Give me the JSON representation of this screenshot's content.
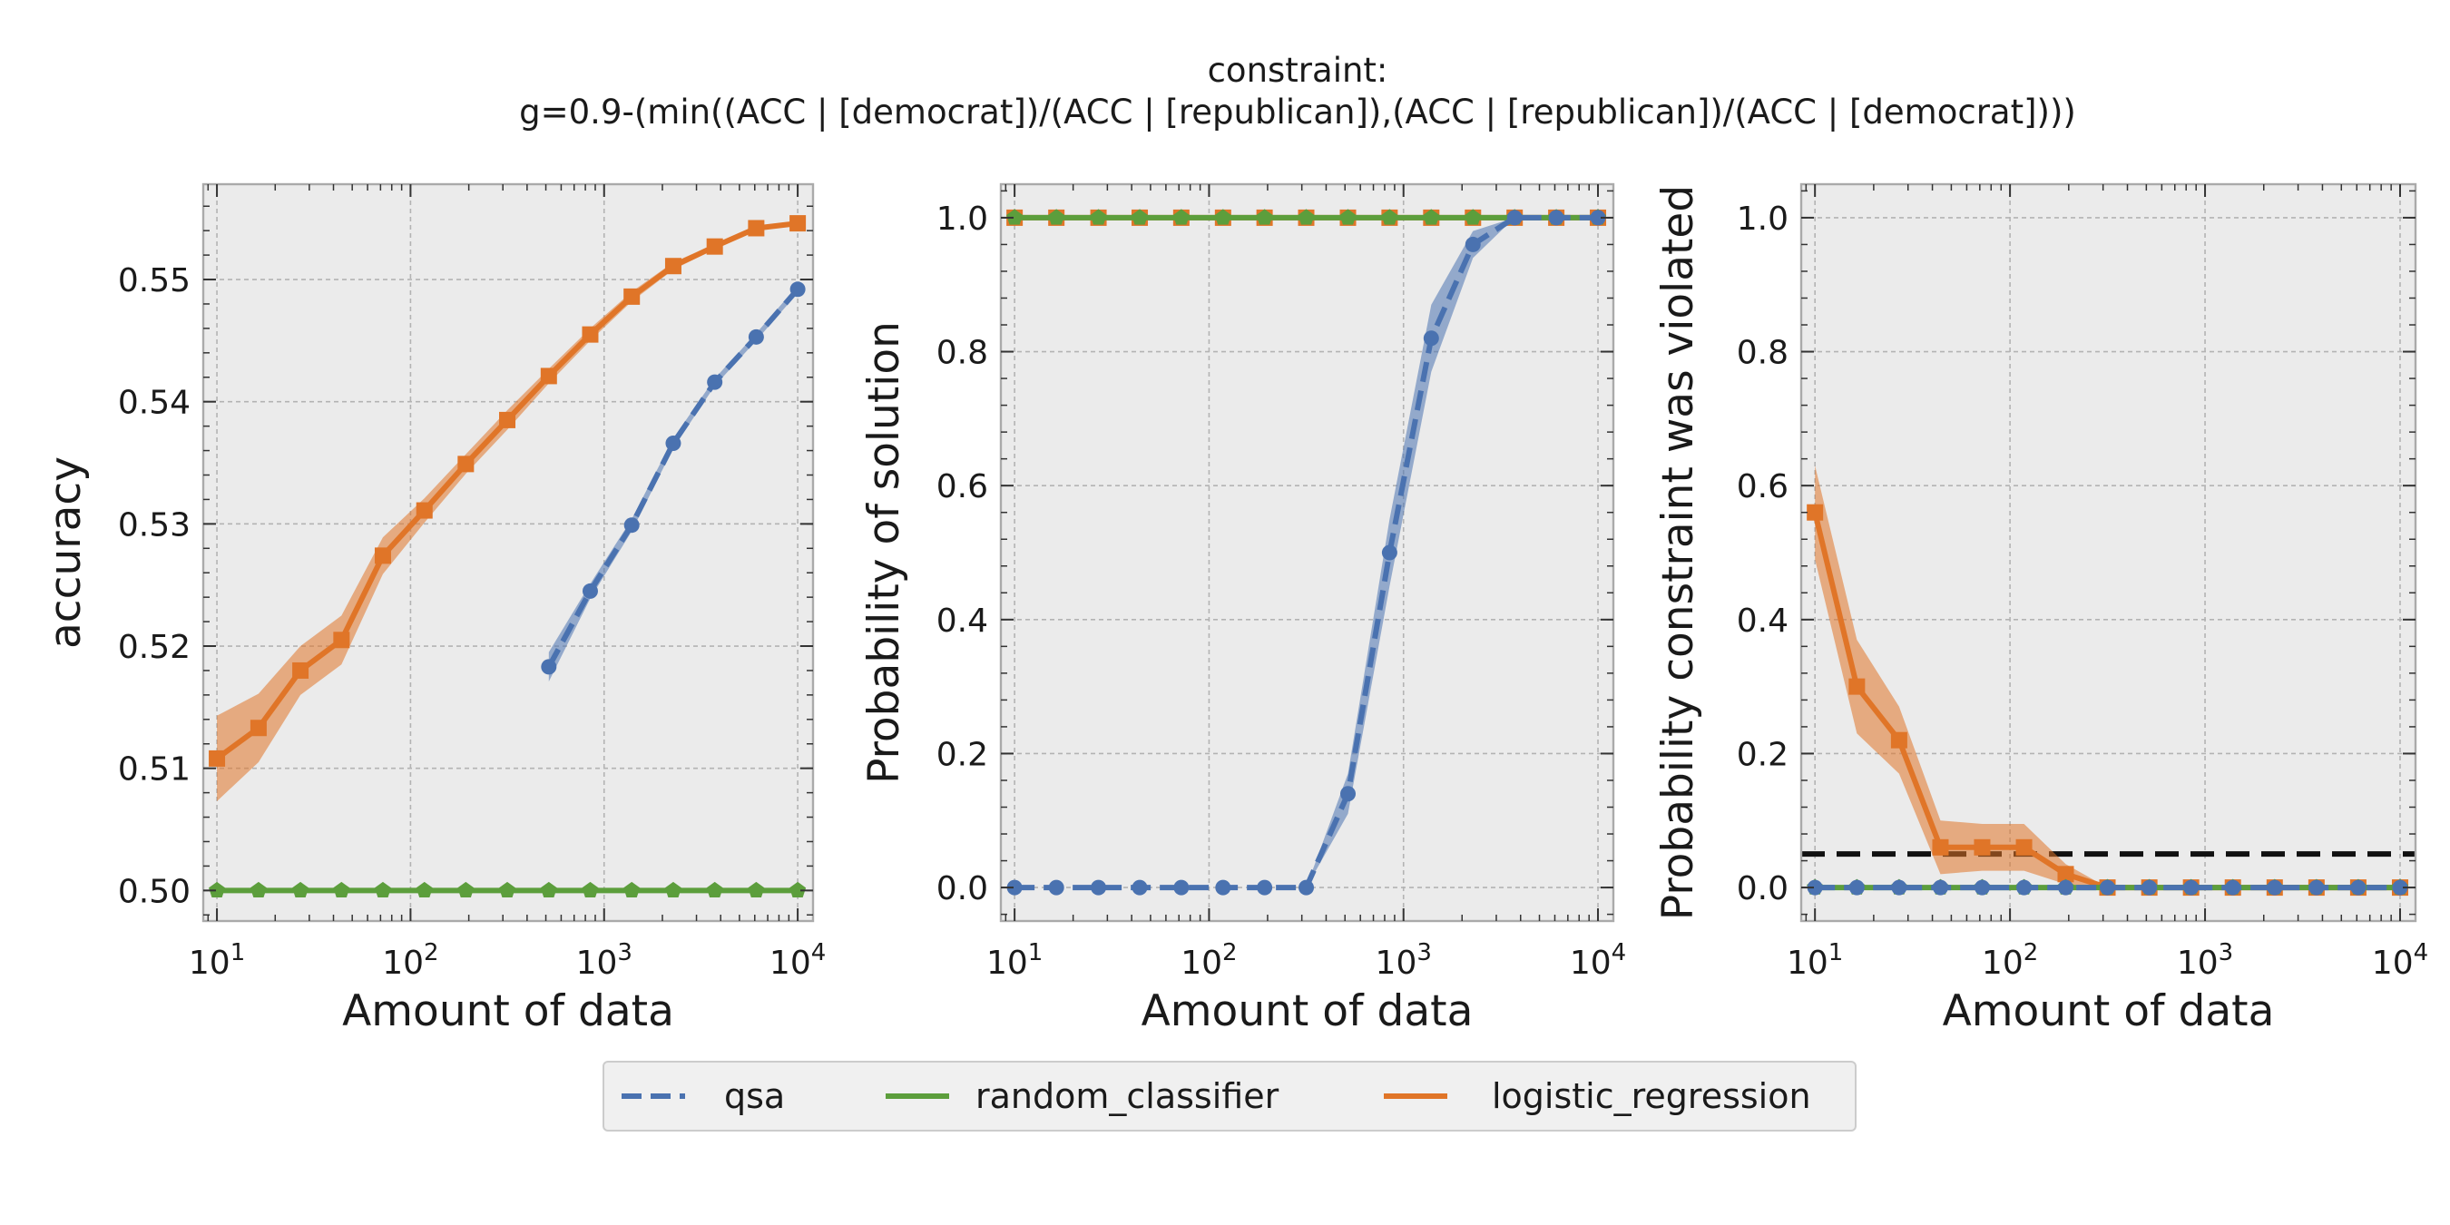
{
  "figure": {
    "title_line1": "constraint:",
    "title_line2": "g=0.9-(min((ACC | [democrat])/(ACC | [republican]),(ACC | [republican])/(ACC | [democrat])))"
  },
  "legend": [
    {
      "name": "qsa",
      "color": "#4a72b0",
      "dash": true
    },
    {
      "name": "random_classifier",
      "color": "#5c9e3c",
      "dash": false
    },
    {
      "name": "logistic_regression",
      "color": "#e07528",
      "dash": false
    }
  ],
  "colors": {
    "qsa": "#4a72b0",
    "random_classifier": "#5c9e3c",
    "logistic_regression": "#e07528",
    "panel_bg": "#ebebeb",
    "grid": "#b3b3b3",
    "threshold": "#111111"
  },
  "chart_data": [
    {
      "type": "line",
      "xlabel": "Amount of data",
      "ylabel": "accuracy",
      "xscale": "log",
      "xlim": [
        8.5,
        12000
      ],
      "ylim": [
        0.4975,
        0.5578
      ],
      "xticks": [
        {
          "value": 10,
          "mant": "10",
          "exp": "1"
        },
        {
          "value": 100,
          "mant": "10",
          "exp": "2"
        },
        {
          "value": 1000,
          "mant": "10",
          "exp": "3"
        },
        {
          "value": 10000,
          "mant": "10",
          "exp": "4"
        }
      ],
      "yticks": [
        {
          "value": 0.5,
          "label": "0.50"
        },
        {
          "value": 0.51,
          "label": "0.51"
        },
        {
          "value": 0.52,
          "label": "0.52"
        },
        {
          "value": 0.53,
          "label": "0.53"
        },
        {
          "value": 0.54,
          "label": "0.54"
        },
        {
          "value": 0.55,
          "label": "0.55"
        }
      ],
      "yminor": 0.002,
      "series": [
        {
          "name": "random_classifier",
          "marker": "pentagon",
          "dash": false,
          "x": [
            10,
            16.4,
            27,
            44,
            72,
            118,
            193,
            316,
            518,
            848,
            1389,
            2276,
            3728,
            6105,
            10000
          ],
          "values": [
            0.5,
            0.5,
            0.5,
            0.5,
            0.5,
            0.5,
            0.5,
            0.5,
            0.5,
            0.5,
            0.5,
            0.5,
            0.5,
            0.5,
            0.5
          ],
          "band": 0.00015
        },
        {
          "name": "logistic_regression",
          "marker": "square",
          "dash": false,
          "x": [
            10,
            16.4,
            27,
            44,
            72,
            118,
            193,
            316,
            518,
            848,
            1389,
            2276,
            3728,
            6105,
            10000
          ],
          "values": [
            0.5108,
            0.5133,
            0.518,
            0.5205,
            0.5274,
            0.5311,
            0.5349,
            0.5385,
            0.5421,
            0.5455,
            0.5486,
            0.5511,
            0.5527,
            0.5542,
            0.5546
          ],
          "band": [
            0.0035,
            0.0028,
            0.002,
            0.002,
            0.0015,
            0.001,
            0.0008,
            0.0008,
            0.0006,
            0.0005,
            0.0004,
            0.0003,
            0.0002,
            0.0002,
            0.0002
          ]
        },
        {
          "name": "qsa",
          "marker": "circle",
          "dash": true,
          "x": [
            518,
            848,
            1389,
            2276,
            3728,
            6105,
            10000
          ],
          "values": [
            0.5183,
            0.5245,
            0.5299,
            0.5366,
            0.5416,
            0.5453,
            0.5492
          ],
          "band": [
            0.0012,
            0.0006,
            0.0005,
            0.0004,
            0.0003,
            0.0003,
            0.0003
          ]
        }
      ]
    },
    {
      "type": "line",
      "xlabel": "Amount of data",
      "ylabel": "Probability of solution",
      "xscale": "log",
      "xlim": [
        8.5,
        12000
      ],
      "ylim": [
        -0.05,
        1.05
      ],
      "xticks": [
        {
          "value": 10,
          "mant": "10",
          "exp": "1"
        },
        {
          "value": 100,
          "mant": "10",
          "exp": "2"
        },
        {
          "value": 1000,
          "mant": "10",
          "exp": "3"
        },
        {
          "value": 10000,
          "mant": "10",
          "exp": "4"
        }
      ],
      "yticks": [
        {
          "value": 0.0,
          "label": "0.0"
        },
        {
          "value": 0.2,
          "label": "0.2"
        },
        {
          "value": 0.4,
          "label": "0.4"
        },
        {
          "value": 0.6,
          "label": "0.6"
        },
        {
          "value": 0.8,
          "label": "0.8"
        },
        {
          "value": 1.0,
          "label": "1.0"
        }
      ],
      "yminor": 0.04,
      "series": [
        {
          "name": "logistic_regression",
          "marker": "square",
          "dash": false,
          "x": [
            10,
            16.4,
            27,
            44,
            72,
            118,
            193,
            316,
            518,
            848,
            1389,
            2276,
            3728,
            6105,
            10000
          ],
          "values": [
            1,
            1,
            1,
            1,
            1,
            1,
            1,
            1,
            1,
            1,
            1,
            1,
            1,
            1,
            1
          ],
          "band": 0.0
        },
        {
          "name": "random_classifier",
          "marker": "pentagon",
          "dash": false,
          "x": [
            10,
            16.4,
            27,
            44,
            72,
            118,
            193,
            316,
            518,
            848,
            1389,
            2276,
            3728,
            6105,
            10000
          ],
          "values": [
            1,
            1,
            1,
            1,
            1,
            1,
            1,
            1,
            1,
            1,
            1,
            1,
            1,
            1,
            1
          ],
          "band": 0.0
        },
        {
          "name": "qsa",
          "marker": "circle",
          "dash": true,
          "x": [
            10,
            16.4,
            27,
            44,
            72,
            118,
            193,
            316,
            518,
            848,
            1389,
            2276,
            3728,
            6105,
            10000
          ],
          "values": [
            0,
            0,
            0,
            0,
            0,
            0,
            0,
            0,
            0.14,
            0.5,
            0.82,
            0.96,
            1.0,
            1.0,
            1.0
          ],
          "band": [
            0,
            0,
            0,
            0,
            0,
            0,
            0,
            0,
            0.03,
            0.05,
            0.05,
            0.02,
            0.0,
            0.0,
            0.0
          ]
        }
      ]
    },
    {
      "type": "line",
      "xlabel": "Amount of data",
      "ylabel": "Probability constraint was violated",
      "xscale": "log",
      "xlim": [
        8.5,
        12000
      ],
      "ylim": [
        -0.05,
        1.05
      ],
      "xticks": [
        {
          "value": 10,
          "mant": "10",
          "exp": "1"
        },
        {
          "value": 100,
          "mant": "10",
          "exp": "2"
        },
        {
          "value": 1000,
          "mant": "10",
          "exp": "3"
        },
        {
          "value": 10000,
          "mant": "10",
          "exp": "4"
        }
      ],
      "yticks": [
        {
          "value": 0.0,
          "label": "0.0"
        },
        {
          "value": 0.2,
          "label": "0.2"
        },
        {
          "value": 0.4,
          "label": "0.4"
        },
        {
          "value": 0.6,
          "label": "0.6"
        },
        {
          "value": 0.8,
          "label": "0.8"
        },
        {
          "value": 1.0,
          "label": "1.0"
        }
      ],
      "yminor": 0.04,
      "threshold": 0.05,
      "series": [
        {
          "name": "logistic_regression",
          "marker": "square",
          "dash": false,
          "x": [
            10,
            16.4,
            27,
            44,
            72,
            118,
            193,
            316,
            518,
            848,
            1389,
            2276,
            3728,
            6105,
            10000
          ],
          "values": [
            0.56,
            0.3,
            0.22,
            0.06,
            0.06,
            0.06,
            0.02,
            0.0,
            0.0,
            0.0,
            0.0,
            0.0,
            0.0,
            0.0,
            0.0
          ],
          "band": [
            0.07,
            0.07,
            0.05,
            0.04,
            0.035,
            0.035,
            0.015,
            0.0,
            0.0,
            0.0,
            0.0,
            0.0,
            0.0,
            0.0,
            0.0
          ]
        },
        {
          "name": "random_classifier",
          "marker": "pentagon",
          "dash": false,
          "x": [
            10,
            16.4,
            27,
            44,
            72,
            118,
            193,
            316,
            518,
            848,
            1389,
            2276,
            3728,
            6105,
            10000
          ],
          "values": [
            0,
            0,
            0,
            0,
            0,
            0,
            0,
            0,
            0,
            0,
            0,
            0,
            0,
            0,
            0
          ],
          "band": 0.0
        },
        {
          "name": "qsa",
          "marker": "circle",
          "dash": true,
          "x": [
            10,
            16.4,
            27,
            44,
            72,
            118,
            193,
            316,
            518,
            848,
            1389,
            2276,
            3728,
            6105,
            10000
          ],
          "values": [
            0,
            0,
            0,
            0,
            0,
            0,
            0,
            0,
            0,
            0,
            0,
            0,
            0,
            0,
            0
          ],
          "band": 0.0
        }
      ]
    }
  ]
}
